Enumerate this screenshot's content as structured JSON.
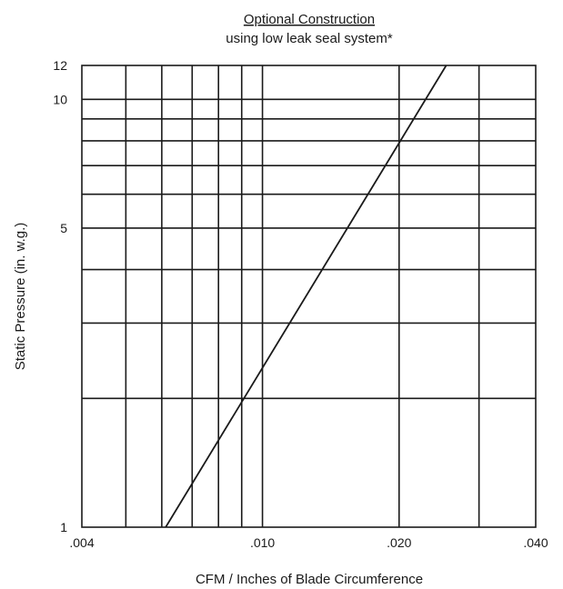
{
  "chart_data": {
    "type": "line",
    "title": "Optional Construction",
    "subtitle": "using low leak seal system*",
    "xlabel": "CFM / Inches of Blade Circumference",
    "ylabel": "Static Pressure (in. w.g.)",
    "x_scale": "log",
    "y_scale": "log",
    "xlim": [
      0.004,
      0.04
    ],
    "ylim": [
      1,
      12
    ],
    "x_ticks": [
      {
        "value": 0.004,
        "label": ".004"
      },
      {
        "value": 0.01,
        "label": ".010"
      },
      {
        "value": 0.02,
        "label": ".020"
      },
      {
        "value": 0.04,
        "label": ".040"
      }
    ],
    "y_ticks": [
      {
        "value": 1,
        "label": "1"
      },
      {
        "value": 5,
        "label": "5"
      },
      {
        "value": 10,
        "label": "10"
      },
      {
        "value": 12,
        "label": "12"
      }
    ],
    "x_grid": [
      0.005,
      0.006,
      0.007,
      0.008,
      0.009,
      0.01,
      0.02,
      0.03
    ],
    "y_grid": [
      2,
      3,
      4,
      5,
      6,
      7,
      8,
      9,
      10
    ],
    "grid": true,
    "series": [
      {
        "x": [
          0.00612,
          0.0254
        ],
        "y": [
          1,
          12
        ]
      }
    ]
  }
}
